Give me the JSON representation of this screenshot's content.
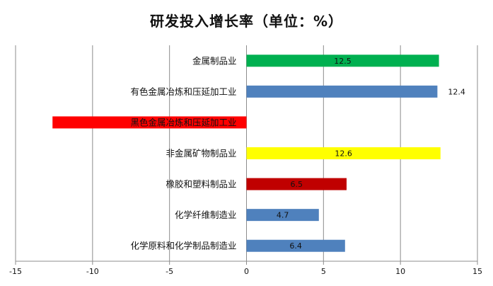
{
  "chart_data": {
    "type": "bar",
    "orientation": "horizontal",
    "title": "研发投入增长率（单位：%）",
    "categories": [
      "金属制品业",
      "有色金属冶炼和压延加工业",
      "黑色金属冶炼和压延加工业",
      "非金属矿物制品业",
      "橡胶和塑料制品业",
      "化学纤维制造业",
      "化学原料和化学制品制造业"
    ],
    "values": [
      12.5,
      12.4,
      -12.6,
      12.6,
      6.5,
      4.7,
      6.4
    ],
    "value_labels": [
      "12.5",
      "12.4",
      "",
      "12.6",
      "6.5",
      "4.7",
      "6.4"
    ],
    "colors": [
      "#00b050",
      "#4f81bd",
      "#ff0000",
      "#ffff00",
      "#c00000",
      "#4f81bd",
      "#4f81bd"
    ],
    "xlim": [
      -15,
      15
    ],
    "xticks": [
      -15,
      -10,
      -5,
      0,
      5,
      10,
      15
    ],
    "grid": true,
    "xlabel": "",
    "ylabel": ""
  }
}
